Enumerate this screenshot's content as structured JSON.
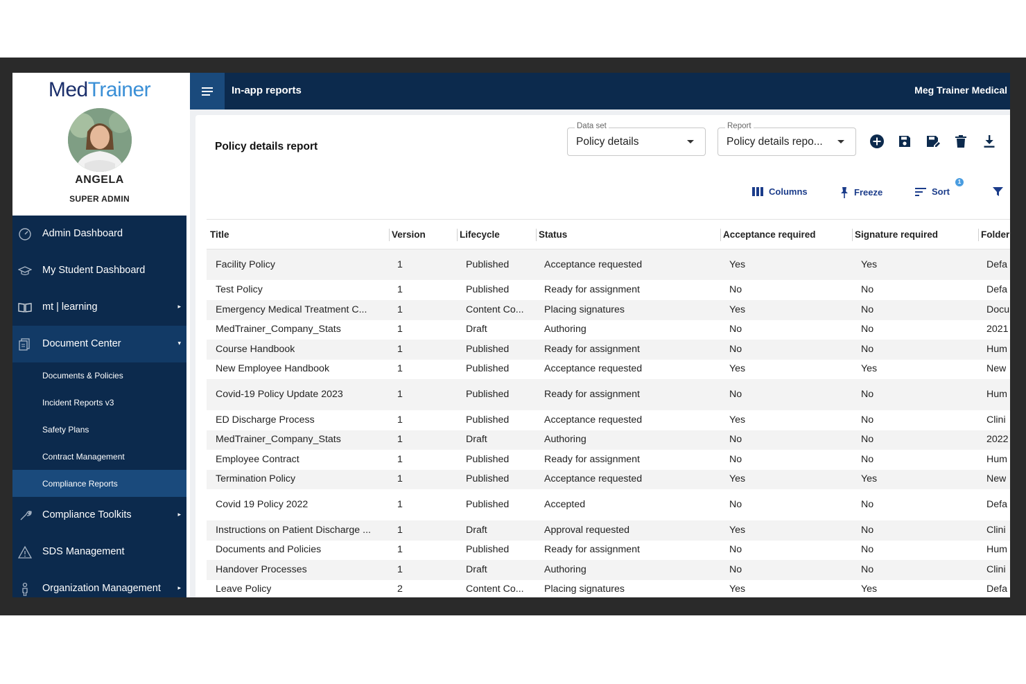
{
  "app": {
    "logo_left": "Med",
    "logo_right": "Trainer",
    "header_title": "In-app reports",
    "org_name": "Meg Trainer Medical"
  },
  "profile": {
    "name": "ANGELA",
    "role": "SUPER ADMIN"
  },
  "sidebar": {
    "items": [
      {
        "label": "Admin Dashboard",
        "icon": "gauge-icon",
        "arrow": false
      },
      {
        "label": "My Student Dashboard",
        "icon": "graduation-cap-icon",
        "arrow": false
      },
      {
        "label": "mt | learning",
        "icon": "open-book-icon",
        "arrow": true
      },
      {
        "label": "Document Center",
        "icon": "documents-icon",
        "arrow": true
      }
    ],
    "subitems": [
      {
        "label": "Documents & Policies"
      },
      {
        "label": "Incident Reports v3"
      },
      {
        "label": "Safety Plans"
      },
      {
        "label": "Contract Management"
      },
      {
        "label": "Compliance Reports"
      }
    ],
    "items_after": [
      {
        "label": "Compliance Toolkits",
        "icon": "tools-icon",
        "arrow": true
      },
      {
        "label": "SDS Management",
        "icon": "warning-icon",
        "arrow": false
      },
      {
        "label": "Organization Management",
        "icon": "person-icon",
        "arrow": true
      }
    ]
  },
  "report": {
    "title": "Policy details report",
    "dataset_label": "Data set",
    "dataset_value": "Policy details",
    "report_label": "Report",
    "report_value": "Policy details repo..."
  },
  "toolbar": {
    "columns": "Columns",
    "freeze": "Freeze",
    "sort": "Sort",
    "sort_badge": "1"
  },
  "table": {
    "headers": [
      "Title",
      "Version",
      "Lifecycle",
      "Status",
      "Acceptance required",
      "Signature required",
      "Folder"
    ],
    "rows": [
      [
        "Facility Policy",
        "1",
        "Published",
        "Acceptance requested",
        "Yes",
        "Yes",
        "Defa"
      ],
      [
        "Test Policy",
        "1",
        "Published",
        "Ready for assignment",
        "No",
        "No",
        "Defa"
      ],
      [
        "Emergency Medical Treatment C...",
        "1",
        "Content Co...",
        "Placing signatures",
        "Yes",
        "No",
        "Docu"
      ],
      [
        "MedTrainer_Company_Stats",
        "1",
        "Draft",
        "Authoring",
        "No",
        "No",
        "2021"
      ],
      [
        "Course Handbook",
        "1",
        "Published",
        "Ready for assignment",
        "No",
        "No",
        "Hum"
      ],
      [
        "New Employee Handbook",
        "1",
        "Published",
        "Acceptance requested",
        "Yes",
        "Yes",
        "New"
      ],
      [
        "Covid-19 Policy Update 2023",
        "1",
        "Published",
        "Ready for assignment",
        "No",
        "No",
        "Hum"
      ],
      [
        "ED Discharge Process",
        "1",
        "Published",
        "Acceptance requested",
        "Yes",
        "No",
        "Clini"
      ],
      [
        "MedTrainer_Company_Stats",
        "1",
        "Draft",
        "Authoring",
        "No",
        "No",
        "2022"
      ],
      [
        "Employee Contract",
        "1",
        "Published",
        "Ready for assignment",
        "No",
        "No",
        "Hum"
      ],
      [
        "Termination Policy",
        "1",
        "Published",
        "Acceptance requested",
        "Yes",
        "Yes",
        "New"
      ],
      [
        "Covid 19 Policy 2022",
        "1",
        "Published",
        "Accepted",
        "No",
        "No",
        "Defa"
      ],
      [
        "Instructions on Patient Discharge ...",
        "1",
        "Draft",
        "Approval requested",
        "Yes",
        "No",
        "Clini"
      ],
      [
        "Documents and Policies",
        "1",
        "Published",
        "Ready for assignment",
        "No",
        "No",
        "Hum"
      ],
      [
        "Handover Processes",
        "1",
        "Draft",
        "Authoring",
        "No",
        "No",
        "Clini"
      ],
      [
        "Leave Policy",
        "2",
        "Content Co...",
        "Placing signatures",
        "Yes",
        "Yes",
        "Defa"
      ]
    ]
  },
  "colors": {
    "navy": "#0c2a4d",
    "active_nav": "#123a66",
    "accent": "#1b3c8a"
  }
}
